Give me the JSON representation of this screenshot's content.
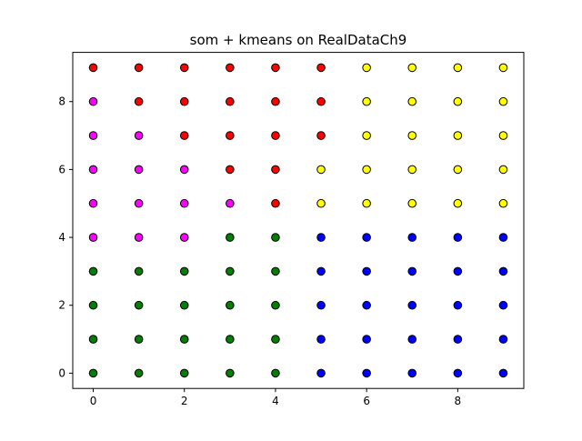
{
  "chart_data": {
    "type": "scatter",
    "title": "som + kmeans on RealDataCh9",
    "xlabel": "",
    "ylabel": "",
    "xlim": [
      -0.45,
      9.45
    ],
    "ylim": [
      -0.45,
      9.45
    ],
    "xticks": [
      0,
      2,
      4,
      6,
      8
    ],
    "yticks": [
      0,
      2,
      4,
      6,
      8
    ],
    "grid": false,
    "legend": "none",
    "marker_edge_color": "#000000",
    "cluster_colors": {
      "red": "#ff0000",
      "yellow": "#ffff00",
      "magenta": "#ff00ff",
      "green": "#008000",
      "blue": "#0000ff"
    },
    "grid_x": [
      0,
      1,
      2,
      3,
      4,
      5,
      6,
      7,
      8,
      9
    ],
    "grid_y": [
      9,
      8,
      7,
      6,
      5,
      4,
      3,
      2,
      1,
      0
    ],
    "cluster_rows": [
      [
        "red",
        "red",
        "red",
        "red",
        "red",
        "red",
        "yellow",
        "yellow",
        "yellow",
        "yellow"
      ],
      [
        "magenta",
        "red",
        "red",
        "red",
        "red",
        "red",
        "yellow",
        "yellow",
        "yellow",
        "yellow"
      ],
      [
        "magenta",
        "magenta",
        "red",
        "red",
        "red",
        "red",
        "yellow",
        "yellow",
        "yellow",
        "yellow"
      ],
      [
        "magenta",
        "magenta",
        "magenta",
        "red",
        "red",
        "yellow",
        "yellow",
        "yellow",
        "yellow",
        "yellow"
      ],
      [
        "magenta",
        "magenta",
        "magenta",
        "magenta",
        "red",
        "yellow",
        "yellow",
        "yellow",
        "yellow",
        "yellow"
      ],
      [
        "magenta",
        "magenta",
        "magenta",
        "green",
        "green",
        "blue",
        "blue",
        "blue",
        "blue",
        "blue"
      ],
      [
        "green",
        "green",
        "green",
        "green",
        "green",
        "blue",
        "blue",
        "blue",
        "blue",
        "blue"
      ],
      [
        "green",
        "green",
        "green",
        "green",
        "green",
        "blue",
        "blue",
        "blue",
        "blue",
        "blue"
      ],
      [
        "green",
        "green",
        "green",
        "green",
        "green",
        "blue",
        "blue",
        "blue",
        "blue",
        "blue"
      ],
      [
        "green",
        "green",
        "green",
        "green",
        "green",
        "blue",
        "blue",
        "blue",
        "blue",
        "blue"
      ]
    ]
  }
}
